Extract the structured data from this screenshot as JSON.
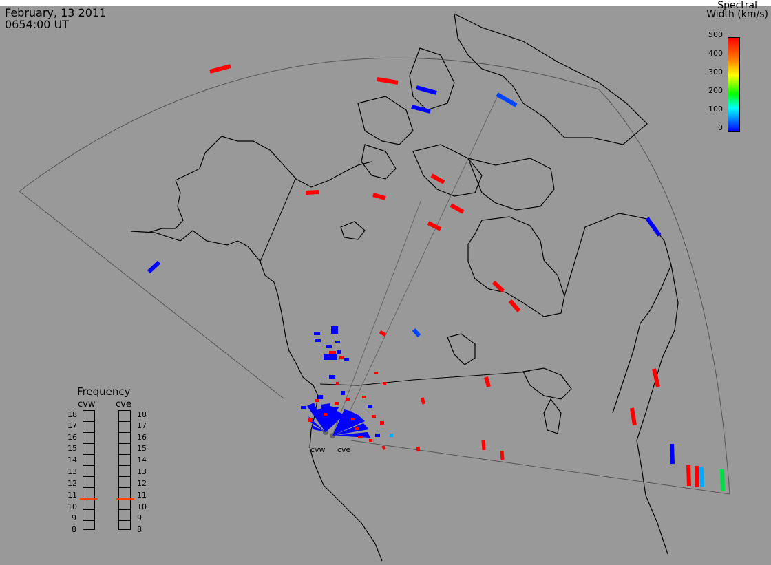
{
  "header": {
    "date": "February, 13 2011",
    "time": "0654:00 UT"
  },
  "colorbar": {
    "title_line1": "Spectral",
    "title_line2": "Width (km/s)",
    "ticks": [
      "500",
      "400",
      "300",
      "200",
      "100",
      "0"
    ],
    "colors": [
      "#ff0000",
      "#ff8800",
      "#ffff00",
      "#00ff00",
      "#00ffff",
      "#0000ff"
    ]
  },
  "frequency_panel": {
    "title": "Frequency",
    "radars": [
      "cvw",
      "cve"
    ],
    "scale": [
      "18",
      "17",
      "16",
      "15",
      "14",
      "13",
      "12",
      "11",
      "10",
      "9",
      "8"
    ],
    "current_mhz": 10.7,
    "marker_color": "#ff4400"
  },
  "radar_sites": [
    "cvw",
    "cve"
  ],
  "colors": {
    "background": "#999999",
    "coast": "#000000",
    "fov": "#555555"
  }
}
